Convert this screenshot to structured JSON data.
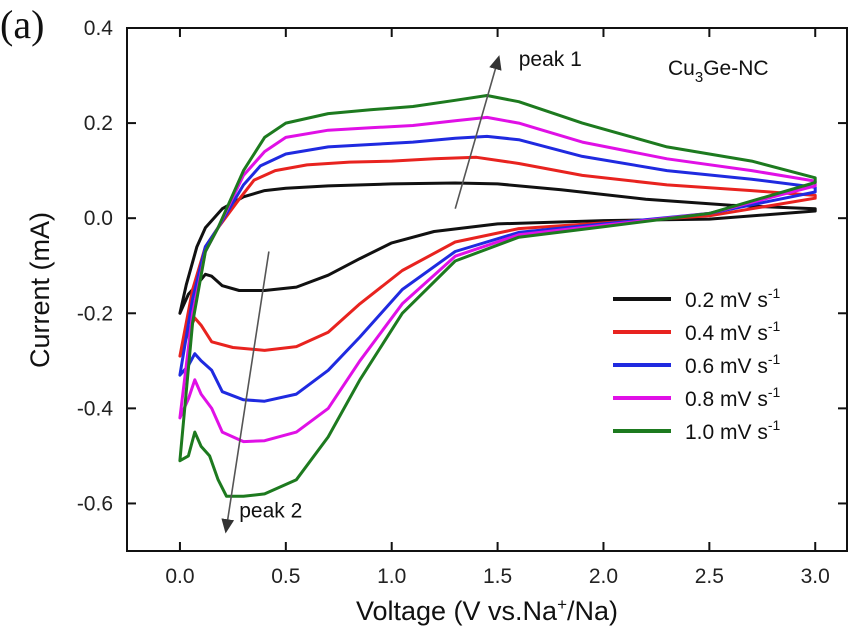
{
  "chart_data": {
    "type": "line",
    "panel_label": "(a)",
    "sample_label": {
      "base": "Cu",
      "sub": "3",
      "rest": "Ge-NC"
    },
    "xlabel": {
      "pre": "Voltage (V vs.Na",
      "sup": "+",
      "post": "/Na)"
    },
    "ylabel": "Current (mA)",
    "xlim": [
      -0.25,
      3.15
    ],
    "ylim": [
      -0.7,
      0.4
    ],
    "xticks": [
      "0.0",
      "0.5",
      "1.0",
      "1.5",
      "2.0",
      "2.5",
      "3.0"
    ],
    "yticks": [
      "0.4",
      "0.2",
      "0.0",
      "-0.2",
      "-0.4",
      "-0.6"
    ],
    "legend_position": "lower-right",
    "series": [
      {
        "name": "0.2 mV s-1",
        "label_main": "0.2 mV s",
        "label_sup": "-1",
        "color": "#111111",
        "anodic": [
          [
            0.12,
            -0.02
          ],
          [
            0.2,
            0.02
          ],
          [
            0.3,
            0.045
          ],
          [
            0.4,
            0.058
          ],
          [
            0.5,
            0.063
          ],
          [
            0.7,
            0.068
          ],
          [
            1.0,
            0.072
          ],
          [
            1.3,
            0.074
          ],
          [
            1.5,
            0.072
          ],
          [
            1.8,
            0.06
          ],
          [
            2.2,
            0.04
          ],
          [
            2.6,
            0.027
          ],
          [
            3.0,
            0.02
          ]
        ],
        "cathodic": [
          [
            3.0,
            0.015
          ],
          [
            2.5,
            -0.002
          ],
          [
            2.0,
            -0.005
          ],
          [
            1.5,
            -0.012
          ],
          [
            1.2,
            -0.028
          ],
          [
            1.0,
            -0.052
          ],
          [
            0.85,
            -0.085
          ],
          [
            0.7,
            -0.12
          ],
          [
            0.55,
            -0.145
          ],
          [
            0.4,
            -0.152
          ],
          [
            0.28,
            -0.152
          ],
          [
            0.2,
            -0.142
          ],
          [
            0.15,
            -0.122
          ],
          [
            0.12,
            -0.118
          ],
          [
            0.08,
            -0.14
          ],
          [
            0.04,
            -0.16
          ],
          [
            0.0,
            -0.2
          ],
          [
            0.03,
            -0.14
          ],
          [
            0.08,
            -0.06
          ],
          [
            0.12,
            -0.02
          ]
        ]
      },
      {
        "name": "0.4 mV s-1",
        "label_main": "0.4 mV s",
        "label_sup": "-1",
        "color": "#e8231f",
        "anodic": [
          [
            0.18,
            -0.02
          ],
          [
            0.28,
            0.04
          ],
          [
            0.35,
            0.08
          ],
          [
            0.45,
            0.1
          ],
          [
            0.6,
            0.112
          ],
          [
            0.8,
            0.118
          ],
          [
            1.0,
            0.12
          ],
          [
            1.2,
            0.125
          ],
          [
            1.4,
            0.128
          ],
          [
            1.6,
            0.115
          ],
          [
            1.9,
            0.09
          ],
          [
            2.3,
            0.07
          ],
          [
            2.7,
            0.058
          ],
          [
            3.0,
            0.048
          ]
        ],
        "cathodic": [
          [
            3.0,
            0.042
          ],
          [
            2.5,
            0.005
          ],
          [
            2.0,
            -0.01
          ],
          [
            1.6,
            -0.022
          ],
          [
            1.3,
            -0.05
          ],
          [
            1.05,
            -0.11
          ],
          [
            0.85,
            -0.18
          ],
          [
            0.7,
            -0.24
          ],
          [
            0.55,
            -0.27
          ],
          [
            0.4,
            -0.278
          ],
          [
            0.25,
            -0.272
          ],
          [
            0.15,
            -0.26
          ],
          [
            0.1,
            -0.225
          ],
          [
            0.07,
            -0.21
          ],
          [
            0.04,
            -0.24
          ],
          [
            0.0,
            -0.29
          ],
          [
            0.06,
            -0.15
          ],
          [
            0.12,
            -0.06
          ],
          [
            0.18,
            -0.02
          ]
        ]
      },
      {
        "name": "0.6 mV s-1",
        "label_main": "0.6 mV s",
        "label_sup": "-1",
        "color": "#1f2ae0",
        "anodic": [
          [
            0.18,
            -0.02
          ],
          [
            0.3,
            0.07
          ],
          [
            0.38,
            0.11
          ],
          [
            0.5,
            0.135
          ],
          [
            0.7,
            0.15
          ],
          [
            0.9,
            0.155
          ],
          [
            1.1,
            0.16
          ],
          [
            1.3,
            0.168
          ],
          [
            1.45,
            0.172
          ],
          [
            1.6,
            0.165
          ],
          [
            1.9,
            0.13
          ],
          [
            2.3,
            0.1
          ],
          [
            2.7,
            0.082
          ],
          [
            3.0,
            0.065
          ]
        ],
        "cathodic": [
          [
            3.0,
            0.055
          ],
          [
            2.5,
            0.01
          ],
          [
            2.0,
            -0.012
          ],
          [
            1.6,
            -0.03
          ],
          [
            1.3,
            -0.07
          ],
          [
            1.05,
            -0.15
          ],
          [
            0.85,
            -0.25
          ],
          [
            0.7,
            -0.32
          ],
          [
            0.55,
            -0.37
          ],
          [
            0.4,
            -0.385
          ],
          [
            0.3,
            -0.382
          ],
          [
            0.2,
            -0.365
          ],
          [
            0.15,
            -0.32
          ],
          [
            0.1,
            -0.3
          ],
          [
            0.07,
            -0.285
          ],
          [
            0.04,
            -0.31
          ],
          [
            0.0,
            -0.33
          ],
          [
            0.06,
            -0.17
          ],
          [
            0.12,
            -0.06
          ],
          [
            0.18,
            -0.02
          ]
        ]
      },
      {
        "name": "0.8 mV s-1",
        "label_main": "0.8 mV s",
        "label_sup": "-1",
        "color": "#e010e6",
        "anodic": [
          [
            0.18,
            -0.02
          ],
          [
            0.3,
            0.09
          ],
          [
            0.4,
            0.14
          ],
          [
            0.5,
            0.17
          ],
          [
            0.7,
            0.185
          ],
          [
            0.9,
            0.19
          ],
          [
            1.1,
            0.195
          ],
          [
            1.3,
            0.205
          ],
          [
            1.45,
            0.212
          ],
          [
            1.6,
            0.2
          ],
          [
            1.9,
            0.16
          ],
          [
            2.3,
            0.125
          ],
          [
            2.7,
            0.1
          ],
          [
            3.0,
            0.078
          ]
        ],
        "cathodic": [
          [
            3.0,
            0.068
          ],
          [
            2.5,
            0.01
          ],
          [
            2.0,
            -0.015
          ],
          [
            1.6,
            -0.035
          ],
          [
            1.3,
            -0.08
          ],
          [
            1.05,
            -0.18
          ],
          [
            0.85,
            -0.3
          ],
          [
            0.7,
            -0.4
          ],
          [
            0.55,
            -0.45
          ],
          [
            0.4,
            -0.468
          ],
          [
            0.3,
            -0.47
          ],
          [
            0.2,
            -0.45
          ],
          [
            0.15,
            -0.4
          ],
          [
            0.1,
            -0.37
          ],
          [
            0.07,
            -0.34
          ],
          [
            0.04,
            -0.38
          ],
          [
            0.0,
            -0.42
          ],
          [
            0.06,
            -0.2
          ],
          [
            0.12,
            -0.07
          ],
          [
            0.18,
            -0.02
          ]
        ]
      },
      {
        "name": "1.0 mV s-1",
        "label_main": "1.0 mV s",
        "label_sup": "-1",
        "color": "#1d7a1f",
        "anodic": [
          [
            0.18,
            -0.02
          ],
          [
            0.3,
            0.1
          ],
          [
            0.4,
            0.17
          ],
          [
            0.5,
            0.2
          ],
          [
            0.7,
            0.22
          ],
          [
            0.9,
            0.228
          ],
          [
            1.1,
            0.235
          ],
          [
            1.3,
            0.248
          ],
          [
            1.45,
            0.258
          ],
          [
            1.6,
            0.245
          ],
          [
            1.9,
            0.2
          ],
          [
            2.3,
            0.15
          ],
          [
            2.7,
            0.12
          ],
          [
            3.0,
            0.085
          ]
        ],
        "cathodic": [
          [
            3.0,
            0.075
          ],
          [
            2.5,
            0.01
          ],
          [
            2.0,
            -0.018
          ],
          [
            1.6,
            -0.04
          ],
          [
            1.3,
            -0.09
          ],
          [
            1.05,
            -0.2
          ],
          [
            0.85,
            -0.34
          ],
          [
            0.7,
            -0.46
          ],
          [
            0.55,
            -0.55
          ],
          [
            0.4,
            -0.58
          ],
          [
            0.3,
            -0.585
          ],
          [
            0.22,
            -0.585
          ],
          [
            0.18,
            -0.55
          ],
          [
            0.14,
            -0.5
          ],
          [
            0.1,
            -0.48
          ],
          [
            0.07,
            -0.45
          ],
          [
            0.04,
            -0.5
          ],
          [
            0.0,
            -0.51
          ],
          [
            0.06,
            -0.22
          ],
          [
            0.12,
            -0.07
          ],
          [
            0.18,
            -0.02
          ]
        ]
      }
    ],
    "annotations": [
      {
        "text": "peak 1",
        "arrow_from": [
          1.3,
          0.02
        ],
        "arrow_to": [
          1.5,
          0.33
        ],
        "text_at": [
          1.6,
          0.32
        ]
      },
      {
        "text": "peak 2",
        "arrow_from": [
          0.42,
          -0.07
        ],
        "arrow_to": [
          0.22,
          -0.65
        ],
        "text_at": [
          0.28,
          -0.63
        ]
      }
    ]
  }
}
